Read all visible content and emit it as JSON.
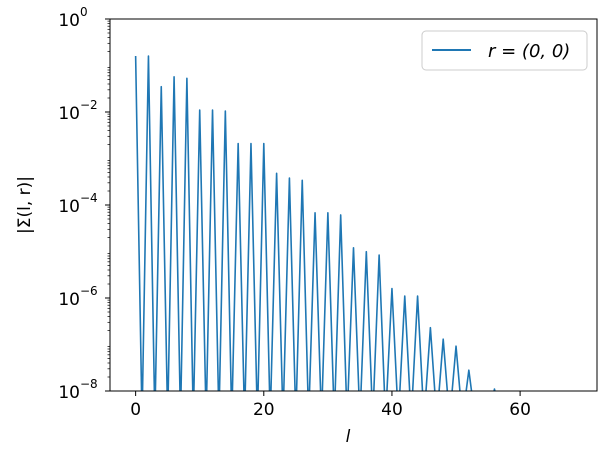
{
  "chart_data": {
    "type": "line",
    "ylabel": "|Σ(l, r)|",
    "xlabel": "l",
    "xlim": [
      -4,
      72
    ],
    "ylim": [
      1e-08,
      1
    ],
    "y_scale": "log",
    "x_ticks": [
      0,
      20,
      40,
      60
    ],
    "x_tick_labels": [
      "0",
      "20",
      "40",
      "60"
    ],
    "y_ticks": [
      1e-08,
      1e-06,
      0.0001,
      0.01,
      1
    ],
    "y_tick_labels": [
      {
        "base": "10",
        "exp": "−8"
      },
      {
        "base": "10",
        "exp": "−6"
      },
      {
        "base": "10",
        "exp": "−4"
      },
      {
        "base": "10",
        "exp": "−2"
      },
      {
        "base": "10",
        "exp": "0"
      }
    ],
    "grid": false,
    "legend_position": "top-right",
    "series": [
      {
        "name": "r = (0, 0)",
        "color": "#1f77b4",
        "peaks": [
          {
            "l": 0,
            "value": 0.16
          },
          {
            "l": 2,
            "value": 0.16
          },
          {
            "l": 4,
            "value": 0.035
          },
          {
            "l": 6,
            "value": 0.057
          },
          {
            "l": 8,
            "value": 0.053
          },
          {
            "l": 10,
            "value": 0.011
          },
          {
            "l": 12,
            "value": 0.011
          },
          {
            "l": 14,
            "value": 0.0105
          },
          {
            "l": 16,
            "value": 0.0021
          },
          {
            "l": 18,
            "value": 0.0021
          },
          {
            "l": 20,
            "value": 0.0021
          },
          {
            "l": 22,
            "value": 0.00048
          },
          {
            "l": 24,
            "value": 0.00038
          },
          {
            "l": 26,
            "value": 0.00034
          },
          {
            "l": 28,
            "value": 6.8e-05
          },
          {
            "l": 30,
            "value": 6.8e-05
          },
          {
            "l": 32,
            "value": 6.1e-05
          },
          {
            "l": 34,
            "value": 1.2e-05
          },
          {
            "l": 36,
            "value": 9.9e-06
          },
          {
            "l": 38,
            "value": 8.4e-06
          },
          {
            "l": 40,
            "value": 1.6e-06
          },
          {
            "l": 42,
            "value": 1.1e-06
          },
          {
            "l": 44,
            "value": 1.1e-06
          },
          {
            "l": 46,
            "value": 2.3e-07
          },
          {
            "l": 48,
            "value": 1.3e-07
          },
          {
            "l": 50,
            "value": 9.2e-08
          },
          {
            "l": 52,
            "value": 2.8e-08
          },
          {
            "l": 56,
            "value": 1.1e-08
          }
        ],
        "baseline_until": 70
      }
    ]
  }
}
